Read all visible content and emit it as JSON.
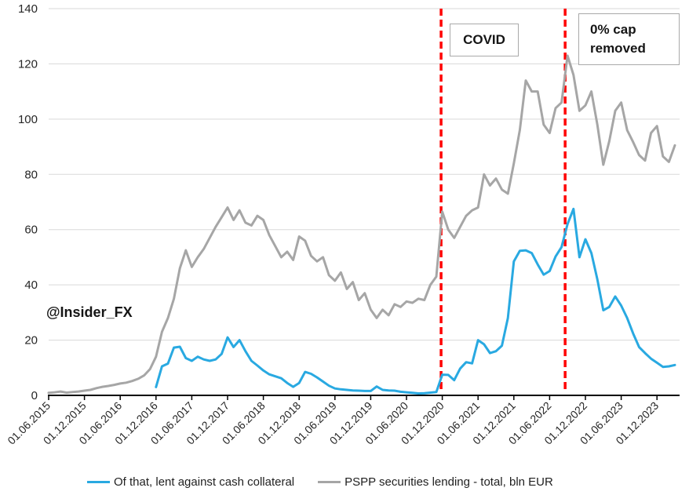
{
  "chart_data": {
    "type": "line",
    "title": "",
    "xlabel": "",
    "ylabel": "",
    "x_unit": "monthly",
    "x_start_label": "01.06.2015",
    "x_end_label": "01.03.2024",
    "x_tick_labels": [
      "01.06.2015",
      "01.12.2015",
      "01.06.2016",
      "01.12.2016",
      "01.06.2017",
      "01.12.2017",
      "01.06.2018",
      "01.12.2018",
      "01.06.2019",
      "01.12.2019",
      "01.06.2020",
      "01.12.2020",
      "01.06.2021",
      "01.12.2021",
      "01.06.2022",
      "01.12.2022",
      "01.06.2023",
      "01.12.2023"
    ],
    "ylim": [
      0,
      140
    ],
    "yticks": [
      0,
      20,
      40,
      60,
      80,
      100,
      120,
      140
    ],
    "grid": "horizontal",
    "legend_position": "bottom",
    "colors": {
      "blue_series": "#29a9e1",
      "gray_series": "#a6a6a6",
      "event_line": "#ff0000",
      "gridline": "#d9d9d9",
      "axis": "#000000",
      "text": "#262626"
    },
    "series": [
      {
        "name": "Of that, lent against cash collateral",
        "color": "#29a9e1",
        "values": [
          null,
          null,
          null,
          null,
          null,
          null,
          null,
          null,
          null,
          null,
          null,
          null,
          null,
          null,
          null,
          null,
          null,
          null,
          3,
          10.5,
          11.5,
          17.3,
          17.6,
          13.5,
          12.5,
          14,
          13,
          12.5,
          13,
          15,
          21,
          17.5,
          20,
          16,
          12.5,
          10.8,
          9,
          7.6,
          6.9,
          6.2,
          4.5,
          3.1,
          4.5,
          8.5,
          7.8,
          6.5,
          5,
          3.5,
          2.5,
          2.2,
          2,
          1.8,
          1.7,
          1.6,
          1.6,
          3.2,
          2,
          1.8,
          1.7,
          1.3,
          1.1,
          0.9,
          0.7,
          0.8,
          1,
          1.2,
          7.5,
          7.4,
          5.5,
          9.7,
          12,
          11.6,
          20,
          18.5,
          15.3,
          16,
          18,
          28,
          48.5,
          52.3,
          52.5,
          51.5,
          47.4,
          43.7,
          45,
          50.3,
          53.7,
          62,
          67.5,
          50,
          56.5,
          51.5,
          42,
          30.8,
          32,
          35.8,
          32.5,
          28,
          22.4,
          17.5,
          15.3,
          13.3,
          11.8,
          10.3,
          10.5,
          11
        ]
      },
      {
        "name": "PSPP securities lending - total, bln EUR",
        "color": "#a6a6a6",
        "values": [
          0.9,
          1.1,
          1.4,
          1.0,
          1.2,
          1.4,
          1.7,
          2.0,
          2.6,
          3.1,
          3.4,
          3.8,
          4.3,
          4.6,
          5.2,
          6.0,
          7.2,
          9.5,
          14,
          23,
          28,
          35,
          46,
          52.5,
          46.5,
          50,
          53,
          57,
          61,
          64.5,
          68,
          63.5,
          67,
          62.5,
          61.5,
          65,
          63.5,
          58,
          54,
          50,
          52,
          49,
          57.5,
          56,
          50.5,
          48.5,
          50,
          43.5,
          41.5,
          44.5,
          38.5,
          41,
          34.5,
          37,
          31,
          28,
          31,
          29,
          33,
          32,
          34,
          33.5,
          35,
          34.5,
          40,
          43,
          66.5,
          60,
          57,
          61,
          65,
          67,
          68,
          80,
          76,
          78.5,
          74.5,
          73,
          84,
          96,
          114,
          110,
          110,
          98,
          95,
          104,
          106,
          123,
          116,
          103,
          105,
          110,
          98,
          83.5,
          92,
          103,
          106,
          96,
          91.7,
          87,
          85,
          95,
          97.5,
          86.5,
          84.5,
          90.5
        ]
      }
    ],
    "vlines": [
      {
        "label": "COVID",
        "x_month": 65.8,
        "color": "#ff0000",
        "style": "dashed"
      },
      {
        "label": "0% cap removed",
        "x_month": 86.6,
        "color": "#ff0000",
        "style": "dashed"
      }
    ],
    "watermark": "@Insider_FX"
  },
  "legend": {
    "items": [
      {
        "label": "Of that, lent against cash collateral"
      },
      {
        "label": "PSPP securities lending - total, bln EUR"
      }
    ]
  }
}
